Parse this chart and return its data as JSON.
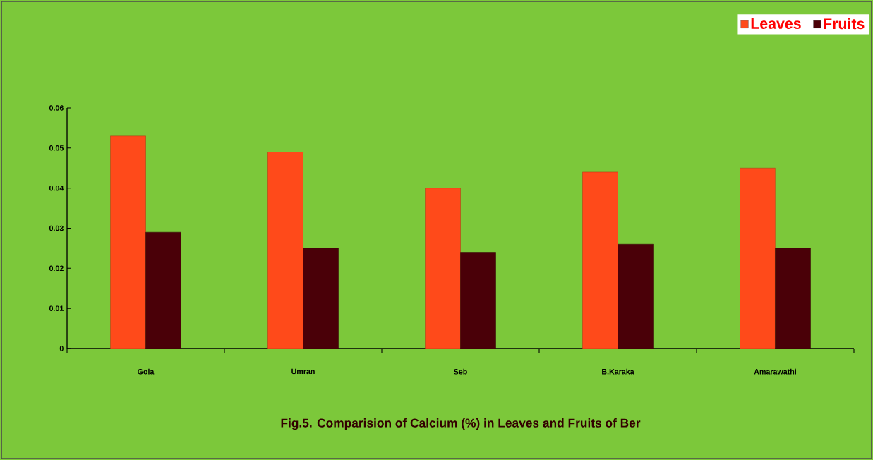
{
  "chart_data": {
    "type": "bar",
    "title": "Fig.5. Comparision of Calcium (%) in Leaves and Fruits of Ber",
    "categories": [
      "Gola",
      "Umran",
      "Seb",
      "B.Karaka",
      "Amarawathi"
    ],
    "series": [
      {
        "name": "Leaves",
        "color": "#ff4a1a",
        "values": [
          0.053,
          0.049,
          0.04,
          0.044,
          0.045
        ]
      },
      {
        "name": "Fruits",
        "color": "#4a0008",
        "values": [
          0.029,
          0.025,
          0.024,
          0.026,
          0.025
        ]
      }
    ],
    "ylim": [
      0,
      0.06
    ],
    "yticks": [
      0,
      0.01,
      0.02,
      0.03,
      0.04,
      0.05,
      0.06
    ],
    "grid": false,
    "legend": "top right"
  }
}
